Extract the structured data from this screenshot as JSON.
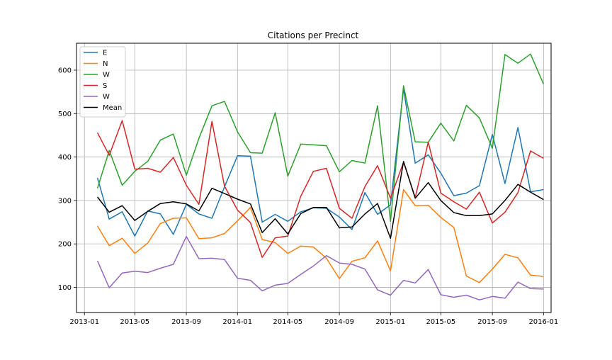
{
  "chart_data": {
    "type": "line",
    "title": "Citations per Precinct",
    "xlabel": "",
    "ylabel": "",
    "x": [
      "2013-02-01",
      "2013-03-01",
      "2013-04-01",
      "2013-05-01",
      "2013-06-01",
      "2013-07-01",
      "2013-08-01",
      "2013-09-01",
      "2013-10-01",
      "2013-11-01",
      "2013-12-01",
      "2014-01-01",
      "2014-02-01",
      "2014-03-01",
      "2014-04-01",
      "2014-05-01",
      "2014-06-01",
      "2014-07-01",
      "2014-08-01",
      "2014-09-01",
      "2014-10-01",
      "2014-11-01",
      "2014-12-01",
      "2015-01-01",
      "2015-02-01",
      "2015-03-01",
      "2015-04-01",
      "2015-05-01",
      "2015-06-01",
      "2015-07-01",
      "2015-08-01",
      "2015-09-01",
      "2015-10-01",
      "2015-11-01",
      "2015-12-01",
      "2016-01-01"
    ],
    "xlim": [
      "2012-12-13",
      "2016-01-19"
    ],
    "ylim": [
      42,
      662
    ],
    "xticks": [
      "2013-01",
      "2013-05",
      "2013-09",
      "2014-01",
      "2014-05",
      "2014-09",
      "2015-01",
      "2015-05",
      "2015-09",
      "2016-01"
    ],
    "yticks": [
      100,
      200,
      300,
      400,
      500,
      600
    ],
    "grid": true,
    "legend_position": "top-left",
    "series": [
      {
        "name": "E",
        "color": "#1f77b4",
        "values": [
          352,
          257,
          274,
          218,
          276,
          269,
          222,
          291,
          269,
          259,
          331,
          403,
          402,
          250,
          268,
          252,
          274,
          283,
          282,
          262,
          233,
          318,
          268,
          290,
          557,
          386,
          405,
          363,
          311,
          317,
          334,
          452,
          339,
          468,
          320,
          325
        ]
      },
      {
        "name": "N",
        "color": "#ff7f0e",
        "values": [
          241,
          196,
          213,
          178,
          202,
          247,
          259,
          260,
          212,
          214,
          224,
          253,
          284,
          210,
          203,
          178,
          195,
          193,
          167,
          120,
          160,
          168,
          207,
          138,
          325,
          288,
          289,
          261,
          238,
          126,
          111,
          142,
          176,
          168,
          128,
          125
        ]
      },
      {
        "name": "W",
        "color": "#2ca02c",
        "values": [
          328,
          415,
          335,
          367,
          390,
          439,
          453,
          358,
          443,
          518,
          528,
          458,
          410,
          409,
          502,
          356,
          430,
          428,
          426,
          366,
          392,
          386,
          518,
          252,
          564,
          435,
          434,
          478,
          437,
          519,
          490,
          420,
          636,
          616,
          637,
          568
        ]
      },
      {
        "name": "S",
        "color": "#d62728",
        "values": [
          456,
          404,
          484,
          372,
          374,
          365,
          399,
          335,
          291,
          482,
          333,
          278,
          249,
          169,
          214,
          218,
          310,
          367,
          374,
          282,
          259,
          332,
          380,
          305,
          388,
          307,
          434,
          317,
          297,
          280,
          319,
          248,
          273,
          318,
          414,
          397
        ]
      },
      {
        "name": "W",
        "color": "#9467bd",
        "values": [
          161,
          99,
          133,
          137,
          134,
          144,
          153,
          217,
          166,
          167,
          164,
          121,
          116,
          92,
          105,
          109,
          130,
          149,
          173,
          156,
          153,
          142,
          94,
          82,
          116,
          110,
          141,
          83,
          77,
          82,
          71,
          79,
          75,
          112,
          97,
          96
        ]
      },
      {
        "name": "Mean",
        "color": "#000000",
        "values": [
          308,
          273,
          288,
          254,
          275,
          293,
          297,
          292,
          276,
          328,
          316,
          303,
          292,
          226,
          258,
          223,
          270,
          284,
          284,
          237,
          239,
          269,
          293,
          213,
          390,
          305,
          341,
          300,
          272,
          265,
          265,
          269,
          300,
          337,
          319,
          302
        ]
      }
    ]
  }
}
